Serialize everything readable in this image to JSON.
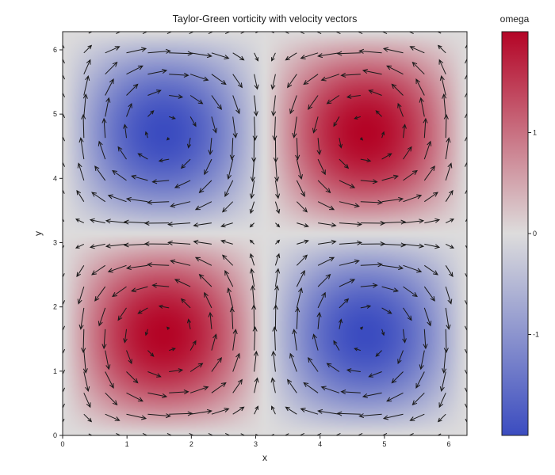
{
  "chart_data": {
    "type": "heatmap",
    "title": "Taylor-Green vorticity with velocity vectors",
    "xlabel": "x",
    "ylabel": "y",
    "xlim": [
      0,
      6.283
    ],
    "ylim": [
      0,
      6.283
    ],
    "x_ticks": [
      "0",
      "1",
      "2",
      "3",
      "4",
      "5",
      "6"
    ],
    "y_ticks": [
      "0",
      "1",
      "2",
      "3",
      "4",
      "5",
      "6"
    ],
    "field": "omega = 2*sin(x)*sin(y)",
    "velocity": "u = sin(x)*cos(y), v = -cos(x)*sin(y)",
    "vector_grid": 20,
    "colorbar": {
      "title": "omega",
      "range": [
        -2,
        2
      ],
      "ticks": [
        "1",
        "0",
        "-1"
      ],
      "colormap": [
        "#3b4cc0",
        "#dddcdc",
        "#b40426"
      ]
    },
    "series": [
      {
        "vortex_center": [
          1.571,
          1.571
        ],
        "omega": 2
      },
      {
        "vortex_center": [
          4.712,
          1.571
        ],
        "omega": -2
      },
      {
        "vortex_center": [
          1.571,
          4.712
        ],
        "omega": -2
      },
      {
        "vortex_center": [
          4.712,
          4.712
        ],
        "omega": 2
      }
    ],
    "grid": false
  }
}
